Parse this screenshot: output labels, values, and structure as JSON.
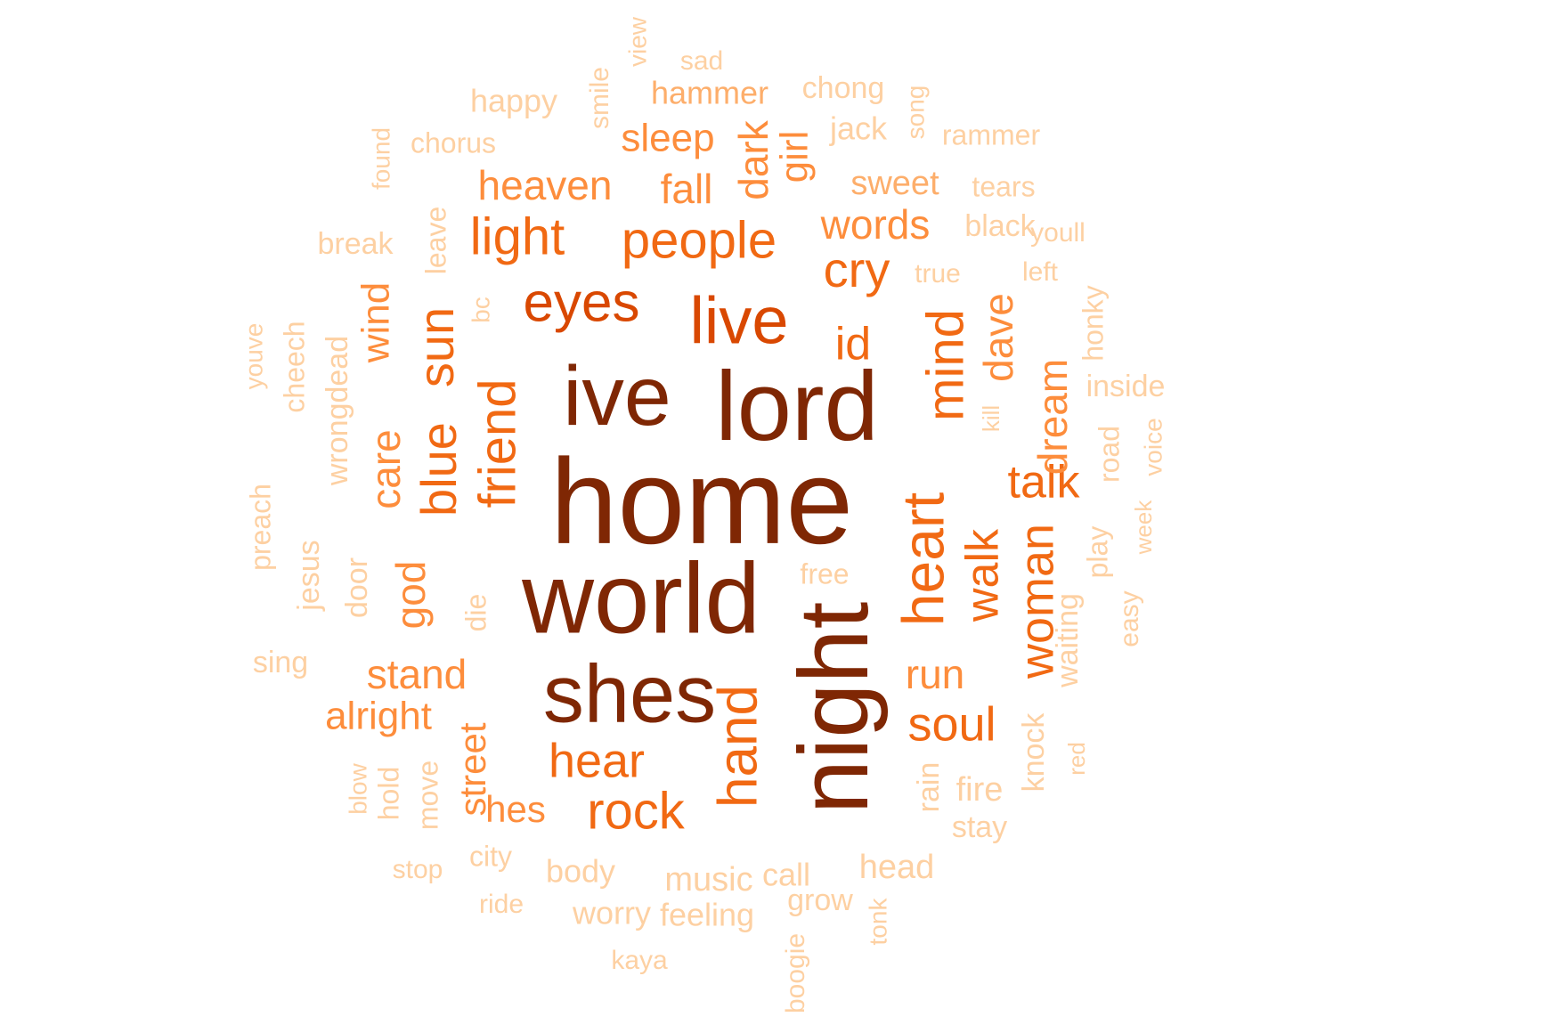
{
  "palette": {
    "c1": "#7f2704",
    "c2": "#a63603",
    "c3": "#d94801",
    "c4": "#f16913",
    "c5": "#fd8d3c",
    "c6": "#fdae6b",
    "c7": "#fdd0a2"
  },
  "words": [
    {
      "text": "home",
      "freq": 10,
      "color": "#7f2704",
      "vertical": false
    },
    {
      "text": "world",
      "freq": 9,
      "color": "#7f2704",
      "vertical": false
    },
    {
      "text": "lord",
      "freq": 9,
      "color": "#7f2704",
      "vertical": false
    },
    {
      "text": "night",
      "freq": 9,
      "color": "#7f2704",
      "vertical": true
    },
    {
      "text": "ive",
      "freq": 8,
      "color": "#7f2704",
      "vertical": false
    },
    {
      "text": "shes",
      "freq": 8,
      "color": "#7f2704",
      "vertical": false
    },
    {
      "text": "live",
      "freq": 7,
      "color": "#d94801",
      "vertical": false
    },
    {
      "text": "eyes",
      "freq": 6,
      "color": "#d94801",
      "vertical": false
    },
    {
      "text": "heart",
      "freq": 6,
      "color": "#f16913",
      "vertical": true
    },
    {
      "text": "hand",
      "freq": 6,
      "color": "#f16913",
      "vertical": true
    },
    {
      "text": "people",
      "freq": 6,
      "color": "#f16913",
      "vertical": false
    },
    {
      "text": "light",
      "freq": 6,
      "color": "#f16913",
      "vertical": false
    },
    {
      "text": "friend",
      "freq": 6,
      "color": "#f16913",
      "vertical": true
    },
    {
      "text": "mind",
      "freq": 6,
      "color": "#f16913",
      "vertical": true
    },
    {
      "text": "rock",
      "freq": 5,
      "color": "#f16913",
      "vertical": false
    },
    {
      "text": "cry",
      "freq": 5,
      "color": "#f16913",
      "vertical": false
    },
    {
      "text": "hear",
      "freq": 5,
      "color": "#f16913",
      "vertical": false
    },
    {
      "text": "soul",
      "freq": 5,
      "color": "#f16913",
      "vertical": false
    },
    {
      "text": "woman",
      "freq": 5,
      "color": "#f16913",
      "vertical": true
    },
    {
      "text": "blue",
      "freq": 5,
      "color": "#f16913",
      "vertical": true
    },
    {
      "text": "talk",
      "freq": 5,
      "color": "#f16913",
      "vertical": false
    },
    {
      "text": "walk",
      "freq": 5,
      "color": "#f16913",
      "vertical": true
    },
    {
      "text": "sun",
      "freq": 5,
      "color": "#f16913",
      "vertical": true
    },
    {
      "text": "id",
      "freq": 5,
      "color": "#f16913",
      "vertical": false
    },
    {
      "text": "words",
      "freq": 4,
      "color": "#fd8d3c",
      "vertical": false
    },
    {
      "text": "heaven",
      "freq": 4,
      "color": "#fd8d3c",
      "vertical": false
    },
    {
      "text": "fall",
      "freq": 4,
      "color": "#fd8d3c",
      "vertical": false
    },
    {
      "text": "dark",
      "freq": 4,
      "color": "#fd8d3c",
      "vertical": true
    },
    {
      "text": "girl",
      "freq": 4,
      "color": "#fd8d3c",
      "vertical": true
    },
    {
      "text": "sleep",
      "freq": 4,
      "color": "#fd8d3c",
      "vertical": false
    },
    {
      "text": "dave",
      "freq": 4,
      "color": "#fd8d3c",
      "vertical": true
    },
    {
      "text": "dream",
      "freq": 4,
      "color": "#fd8d3c",
      "vertical": true
    },
    {
      "text": "god",
      "freq": 4,
      "color": "#fd8d3c",
      "vertical": true
    },
    {
      "text": "care",
      "freq": 4,
      "color": "#fd8d3c",
      "vertical": true
    },
    {
      "text": "stand",
      "freq": 4,
      "color": "#fd8d3c",
      "vertical": false
    },
    {
      "text": "alright",
      "freq": 4,
      "color": "#fd8d3c",
      "vertical": false
    },
    {
      "text": "run",
      "freq": 4,
      "color": "#fd8d3c",
      "vertical": false
    },
    {
      "text": "street",
      "freq": 4,
      "color": "#fd8d3c",
      "vertical": true
    },
    {
      "text": "hes",
      "freq": 4,
      "color": "#fd8d3c",
      "vertical": false
    },
    {
      "text": "wind",
      "freq": 4,
      "color": "#fd8d3c",
      "vertical": true
    },
    {
      "text": "sweet",
      "freq": 3,
      "color": "#fdae6b",
      "vertical": false
    },
    {
      "text": "hammer",
      "freq": 3,
      "color": "#fdae6b",
      "vertical": false
    },
    {
      "text": "happy",
      "freq": 3,
      "color": "#fdd0a2",
      "vertical": false
    },
    {
      "text": "chong",
      "freq": 3,
      "color": "#fdd0a2",
      "vertical": false
    },
    {
      "text": "jack",
      "freq": 3,
      "color": "#fdd0a2",
      "vertical": false
    },
    {
      "text": "tears",
      "freq": 3,
      "color": "#fdd0a2",
      "vertical": false
    },
    {
      "text": "black",
      "freq": 3,
      "color": "#fdd0a2",
      "vertical": false
    },
    {
      "text": "youll",
      "freq": 3,
      "color": "#fdd0a2",
      "vertical": false
    },
    {
      "text": "true",
      "freq": 3,
      "color": "#fdd0a2",
      "vertical": false
    },
    {
      "text": "left",
      "freq": 3,
      "color": "#fdd0a2",
      "vertical": false
    },
    {
      "text": "honky",
      "freq": 3,
      "color": "#fdd0a2",
      "vertical": true
    },
    {
      "text": "inside",
      "freq": 3,
      "color": "#fdd0a2",
      "vertical": false
    },
    {
      "text": "kill",
      "freq": 3,
      "color": "#fdd0a2",
      "vertical": true
    },
    {
      "text": "road",
      "freq": 3,
      "color": "#fdd0a2",
      "vertical": true
    },
    {
      "text": "voice",
      "freq": 3,
      "color": "#fdd0a2",
      "vertical": true
    },
    {
      "text": "week",
      "freq": 3,
      "color": "#fdd0a2",
      "vertical": true
    },
    {
      "text": "play",
      "freq": 3,
      "color": "#fdd0a2",
      "vertical": true
    },
    {
      "text": "easy",
      "freq": 3,
      "color": "#fdd0a2",
      "vertical": true
    },
    {
      "text": "waiting",
      "freq": 3,
      "color": "#fdd0a2",
      "vertical": true
    },
    {
      "text": "knock",
      "freq": 3,
      "color": "#fdd0a2",
      "vertical": true
    },
    {
      "text": "red",
      "freq": 3,
      "color": "#fdd0a2",
      "vertical": true
    },
    {
      "text": "fire",
      "freq": 3,
      "color": "#fdd0a2",
      "vertical": false
    },
    {
      "text": "stay",
      "freq": 3,
      "color": "#fdd0a2",
      "vertical": false
    },
    {
      "text": "rain",
      "freq": 3,
      "color": "#fdd0a2",
      "vertical": true
    },
    {
      "text": "head",
      "freq": 3,
      "color": "#fdd0a2",
      "vertical": false
    },
    {
      "text": "tonk",
      "freq": 3,
      "color": "#fdd0a2",
      "vertical": true
    },
    {
      "text": "grow",
      "freq": 3,
      "color": "#fdd0a2",
      "vertical": false
    },
    {
      "text": "call",
      "freq": 3,
      "color": "#fdd0a2",
      "vertical": false
    },
    {
      "text": "music",
      "freq": 3,
      "color": "#fdd0a2",
      "vertical": false
    },
    {
      "text": "feeling",
      "freq": 3,
      "color": "#fdd0a2",
      "vertical": false
    },
    {
      "text": "boogie",
      "freq": 3,
      "color": "#fdd0a2",
      "vertical": true
    },
    {
      "text": "kaya",
      "freq": 3,
      "color": "#fdd0a2",
      "vertical": false
    },
    {
      "text": "worry",
      "freq": 3,
      "color": "#fdd0a2",
      "vertical": false
    },
    {
      "text": "body",
      "freq": 3,
      "color": "#fdd0a2",
      "vertical": false
    },
    {
      "text": "ride",
      "freq": 3,
      "color": "#fdd0a2",
      "vertical": false
    },
    {
      "text": "city",
      "freq": 3,
      "color": "#fdd0a2",
      "vertical": false
    },
    {
      "text": "stop",
      "freq": 3,
      "color": "#fdd0a2",
      "vertical": false
    },
    {
      "text": "move",
      "freq": 3,
      "color": "#fdd0a2",
      "vertical": true
    },
    {
      "text": "hold",
      "freq": 3,
      "color": "#fdd0a2",
      "vertical": true
    },
    {
      "text": "blow",
      "freq": 3,
      "color": "#fdd0a2",
      "vertical": true
    },
    {
      "text": "sing",
      "freq": 3,
      "color": "#fdd0a2",
      "vertical": false
    },
    {
      "text": "door",
      "freq": 3,
      "color": "#fdd0a2",
      "vertical": true
    },
    {
      "text": "jesus",
      "freq": 3,
      "color": "#fdd0a2",
      "vertical": true
    },
    {
      "text": "preach",
      "freq": 3,
      "color": "#fdd0a2",
      "vertical": true
    },
    {
      "text": "wrongdead",
      "freq": 3,
      "color": "#fdd0a2",
      "vertical": true
    },
    {
      "text": "cheech",
      "freq": 3,
      "color": "#fdd0a2",
      "vertical": true
    },
    {
      "text": "youve",
      "freq": 3,
      "color": "#fdd0a2",
      "vertical": true
    },
    {
      "text": "break",
      "freq": 3,
      "color": "#fdd0a2",
      "vertical": false
    },
    {
      "text": "found",
      "freq": 3,
      "color": "#fdd0a2",
      "vertical": true
    },
    {
      "text": "chorus",
      "freq": 3,
      "color": "#fdd0a2",
      "vertical": false
    },
    {
      "text": "leave",
      "freq": 3,
      "color": "#fdd0a2",
      "vertical": true
    },
    {
      "text": "bc",
      "freq": 3,
      "color": "#fdd0a2",
      "vertical": true
    },
    {
      "text": "smile",
      "freq": 3,
      "color": "#fdd0a2",
      "vertical": true
    },
    {
      "text": "view",
      "freq": 3,
      "color": "#fdd0a2",
      "vertical": true
    },
    {
      "text": "sad",
      "freq": 3,
      "color": "#fdd0a2",
      "vertical": false
    },
    {
      "text": "song",
      "freq": 3,
      "color": "#fdd0a2",
      "vertical": true
    },
    {
      "text": "rammer",
      "freq": 3,
      "color": "#fdd0a2",
      "vertical": false
    },
    {
      "text": "die",
      "freq": 3,
      "color": "#fdd0a2",
      "vertical": true
    },
    {
      "text": "free",
      "freq": 3,
      "color": "#fdd0a2",
      "vertical": false
    }
  ]
}
